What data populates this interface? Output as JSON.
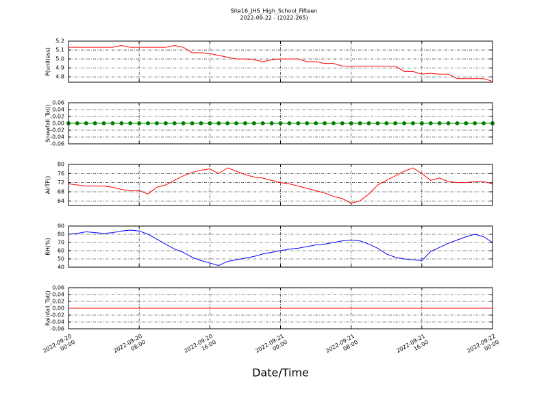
{
  "title": "Site16_JHS_High_School_Fifteen",
  "subtitle": "2022-09-22 - (2022-265)",
  "chart_data": [
    {
      "type": "line",
      "ylabel": "P(unitless)",
      "color": "#ff0000",
      "marker": false,
      "grid": true,
      "ylim": [
        4.74,
        5.2
      ],
      "yticks": [
        4.8,
        4.9,
        {
          "value": 5,
          "label": "5.0"
        },
        5.1,
        5.2
      ],
      "x": [
        "2022-09-20 00:00",
        "2022-09-20 01:00",
        "2022-09-20 02:00",
        "2022-09-20 03:00",
        "2022-09-20 04:00",
        "2022-09-20 05:00",
        "2022-09-20 06:00",
        "2022-09-20 07:00",
        "2022-09-20 08:00",
        "2022-09-20 09:00",
        "2022-09-20 10:00",
        "2022-09-20 11:00",
        "2022-09-20 12:00",
        "2022-09-20 13:00",
        "2022-09-20 14:00",
        "2022-09-20 15:00",
        "2022-09-20 16:00",
        "2022-09-20 17:00",
        "2022-09-20 18:00",
        "2022-09-20 19:00",
        "2022-09-20 20:00",
        "2022-09-20 21:00",
        "2022-09-20 22:00",
        "2022-09-20 23:00",
        "2022-09-21 00:00",
        "2022-09-21 01:00",
        "2022-09-21 02:00",
        "2022-09-21 03:00",
        "2022-09-21 04:00",
        "2022-09-21 05:00",
        "2022-09-21 06:00",
        "2022-09-21 07:00",
        "2022-09-21 08:00",
        "2022-09-21 09:00",
        "2022-09-21 10:00",
        "2022-09-21 11:00",
        "2022-09-21 12:00",
        "2022-09-21 13:00",
        "2022-09-21 14:00",
        "2022-09-21 15:00",
        "2022-09-21 16:00",
        "2022-09-21 17:00",
        "2022-09-21 18:00",
        "2022-09-21 19:00",
        "2022-09-21 20:00",
        "2022-09-21 21:00",
        "2022-09-21 22:00",
        "2022-09-21 23:00",
        "2022-09-22 00:00"
      ],
      "values": [
        5.13,
        5.13,
        5.13,
        5.13,
        5.13,
        5.13,
        5.15,
        5.13,
        5.13,
        5.13,
        5.13,
        5.13,
        5.15,
        5.13,
        5.07,
        5.07,
        5.06,
        5.04,
        5.02,
        5.0,
        5.0,
        4.99,
        4.97,
        4.99,
        5.0,
        5.0,
        5.0,
        4.97,
        4.97,
        4.95,
        4.95,
        4.92,
        4.92,
        4.92,
        4.92,
        4.92,
        4.92,
        4.92,
        4.86,
        4.86,
        4.83,
        4.84,
        4.83,
        4.83,
        4.78,
        4.78,
        4.78,
        4.78,
        4.75
      ]
    },
    {
      "type": "line",
      "ylabel": "Snowfall_Tot()",
      "color": "#008000",
      "marker": true,
      "grid": true,
      "ylim": [
        -0.06,
        0.06
      ],
      "yticks": [
        -0.06,
        -0.04,
        -0.02,
        {
          "value": 0,
          "label": "0.00"
        },
        0.02,
        0.04,
        0.06
      ],
      "x": [
        "2022-09-20 00:00",
        "2022-09-20 01:00",
        "2022-09-20 02:00",
        "2022-09-20 03:00",
        "2022-09-20 04:00",
        "2022-09-20 05:00",
        "2022-09-20 06:00",
        "2022-09-20 07:00",
        "2022-09-20 08:00",
        "2022-09-20 09:00",
        "2022-09-20 10:00",
        "2022-09-20 11:00",
        "2022-09-20 12:00",
        "2022-09-20 13:00",
        "2022-09-20 14:00",
        "2022-09-20 15:00",
        "2022-09-20 16:00",
        "2022-09-20 17:00",
        "2022-09-20 18:00",
        "2022-09-20 19:00",
        "2022-09-20 20:00",
        "2022-09-20 21:00",
        "2022-09-20 22:00",
        "2022-09-20 23:00",
        "2022-09-21 00:00",
        "2022-09-21 01:00",
        "2022-09-21 02:00",
        "2022-09-21 03:00",
        "2022-09-21 04:00",
        "2022-09-21 05:00",
        "2022-09-21 06:00",
        "2022-09-21 07:00",
        "2022-09-21 08:00",
        "2022-09-21 09:00",
        "2022-09-21 10:00",
        "2022-09-21 11:00",
        "2022-09-21 12:00",
        "2022-09-21 13:00",
        "2022-09-21 14:00",
        "2022-09-21 15:00",
        "2022-09-21 16:00",
        "2022-09-21 17:00",
        "2022-09-21 18:00",
        "2022-09-21 19:00",
        "2022-09-21 20:00",
        "2022-09-21 21:00",
        "2022-09-21 22:00",
        "2022-09-21 23:00",
        "2022-09-22 00:00"
      ],
      "values": [
        0,
        0,
        0,
        0,
        0,
        0,
        0,
        0,
        0,
        0,
        0,
        0,
        0,
        0,
        0,
        0,
        0,
        0,
        0,
        0,
        0,
        0,
        0,
        0,
        0,
        0,
        0,
        0,
        0,
        0,
        0,
        0,
        0,
        0,
        0,
        0,
        0,
        0,
        0,
        0,
        0,
        0,
        0,
        0,
        0,
        0,
        0,
        0,
        0
      ]
    },
    {
      "type": "line",
      "ylabel": "AirTF()",
      "color": "#ff0000",
      "marker": false,
      "grid": true,
      "ylim": [
        62,
        80
      ],
      "yticks": [
        64,
        68,
        72,
        76,
        80
      ],
      "x": [
        "2022-09-20 00:00",
        "2022-09-20 01:00",
        "2022-09-20 02:00",
        "2022-09-20 03:00",
        "2022-09-20 04:00",
        "2022-09-20 05:00",
        "2022-09-20 06:00",
        "2022-09-20 07:00",
        "2022-09-20 08:00",
        "2022-09-20 09:00",
        "2022-09-20 10:00",
        "2022-09-20 11:00",
        "2022-09-20 12:00",
        "2022-09-20 13:00",
        "2022-09-20 14:00",
        "2022-09-20 15:00",
        "2022-09-20 16:00",
        "2022-09-20 17:00",
        "2022-09-20 18:00",
        "2022-09-20 19:00",
        "2022-09-20 20:00",
        "2022-09-20 21:00",
        "2022-09-20 22:00",
        "2022-09-20 23:00",
        "2022-09-21 00:00",
        "2022-09-21 01:00",
        "2022-09-21 02:00",
        "2022-09-21 03:00",
        "2022-09-21 04:00",
        "2022-09-21 05:00",
        "2022-09-21 06:00",
        "2022-09-21 07:00",
        "2022-09-21 08:00",
        "2022-09-21 09:00",
        "2022-09-21 10:00",
        "2022-09-21 11:00",
        "2022-09-21 12:00",
        "2022-09-21 13:00",
        "2022-09-21 14:00",
        "2022-09-21 15:00",
        "2022-09-21 16:00",
        "2022-09-21 17:00",
        "2022-09-21 18:00",
        "2022-09-21 19:00",
        "2022-09-21 20:00",
        "2022-09-21 21:00",
        "2022-09-21 22:00",
        "2022-09-21 23:00",
        "2022-09-22 00:00"
      ],
      "values": [
        71.5,
        71,
        70.5,
        70.5,
        70.5,
        70,
        69,
        68.5,
        68.5,
        67,
        70,
        71,
        73,
        75,
        76.5,
        77.5,
        78,
        76,
        78.5,
        77,
        75.5,
        74.5,
        74,
        73,
        72,
        71.5,
        70.5,
        69.5,
        68.5,
        67.5,
        66,
        65,
        63,
        64,
        67,
        71,
        73,
        75,
        77,
        78.5,
        76,
        73,
        74,
        72.5,
        72,
        72,
        72.5,
        72.5,
        71.5
      ]
    },
    {
      "type": "line",
      "ylabel": "RH(%)",
      "color": "#0000ff",
      "marker": false,
      "grid": true,
      "ylim": [
        40,
        90
      ],
      "yticks": [
        40,
        50,
        60,
        70,
        80,
        90
      ],
      "x": [
        "2022-09-20 00:00",
        "2022-09-20 01:00",
        "2022-09-20 02:00",
        "2022-09-20 03:00",
        "2022-09-20 04:00",
        "2022-09-20 05:00",
        "2022-09-20 06:00",
        "2022-09-20 07:00",
        "2022-09-20 08:00",
        "2022-09-20 09:00",
        "2022-09-20 10:00",
        "2022-09-20 11:00",
        "2022-09-20 12:00",
        "2022-09-20 13:00",
        "2022-09-20 14:00",
        "2022-09-20 15:00",
        "2022-09-20 16:00",
        "2022-09-20 17:00",
        "2022-09-20 18:00",
        "2022-09-20 19:00",
        "2022-09-20 20:00",
        "2022-09-20 21:00",
        "2022-09-20 22:00",
        "2022-09-20 23:00",
        "2022-09-21 00:00",
        "2022-09-21 01:00",
        "2022-09-21 02:00",
        "2022-09-21 03:00",
        "2022-09-21 04:00",
        "2022-09-21 05:00",
        "2022-09-21 06:00",
        "2022-09-21 07:00",
        "2022-09-21 08:00",
        "2022-09-21 09:00",
        "2022-09-21 10:00",
        "2022-09-21 11:00",
        "2022-09-21 12:00",
        "2022-09-21 13:00",
        "2022-09-21 14:00",
        "2022-09-21 15:00",
        "2022-09-21 16:00",
        "2022-09-21 17:00",
        "2022-09-21 18:00",
        "2022-09-21 19:00",
        "2022-09-21 20:00",
        "2022-09-21 21:00",
        "2022-09-21 22:00",
        "2022-09-21 23:00",
        "2022-09-22 00:00"
      ],
      "values": [
        80,
        81,
        83,
        82,
        81,
        82,
        84,
        85,
        84,
        80,
        74,
        68,
        62,
        58,
        52,
        48,
        45,
        42,
        47,
        49,
        51,
        53,
        56,
        58,
        60,
        62,
        63,
        65,
        67,
        68,
        70,
        72,
        73,
        72,
        68,
        63,
        56,
        52,
        50,
        49,
        48,
        59,
        64,
        69,
        73,
        77,
        80,
        77,
        70
      ]
    },
    {
      "type": "line",
      "ylabel": "Rainfall_Tot()",
      "color": "#ff0000",
      "marker": false,
      "grid": true,
      "ylim": [
        -0.06,
        0.06
      ],
      "yticks": [
        -0.06,
        -0.04,
        -0.02,
        {
          "value": 0,
          "label": "0.00"
        },
        0.02,
        0.04,
        0.06
      ],
      "x": [
        "2022-09-20 00:00",
        "2022-09-20 01:00",
        "2022-09-20 02:00",
        "2022-09-20 03:00",
        "2022-09-20 04:00",
        "2022-09-20 05:00",
        "2022-09-20 06:00",
        "2022-09-20 07:00",
        "2022-09-20 08:00",
        "2022-09-20 09:00",
        "2022-09-20 10:00",
        "2022-09-20 11:00",
        "2022-09-20 12:00",
        "2022-09-20 13:00",
        "2022-09-20 14:00",
        "2022-09-20 15:00",
        "2022-09-20 16:00",
        "2022-09-20 17:00",
        "2022-09-20 18:00",
        "2022-09-20 19:00",
        "2022-09-20 20:00",
        "2022-09-20 21:00",
        "2022-09-20 22:00",
        "2022-09-20 23:00",
        "2022-09-21 00:00",
        "2022-09-21 01:00",
        "2022-09-21 02:00",
        "2022-09-21 03:00",
        "2022-09-21 04:00",
        "2022-09-21 05:00",
        "2022-09-21 06:00",
        "2022-09-21 07:00",
        "2022-09-21 08:00",
        "2022-09-21 09:00",
        "2022-09-21 10:00",
        "2022-09-21 11:00",
        "2022-09-21 12:00",
        "2022-09-21 13:00",
        "2022-09-21 14:00",
        "2022-09-21 15:00",
        "2022-09-21 16:00",
        "2022-09-21 17:00",
        "2022-09-21 18:00",
        "2022-09-21 19:00",
        "2022-09-21 20:00",
        "2022-09-21 21:00",
        "2022-09-21 22:00",
        "2022-09-21 23:00",
        "2022-09-22 00:00"
      ],
      "values": [
        0,
        0,
        0,
        0,
        0,
        0,
        0,
        0,
        0,
        0,
        0,
        0,
        0,
        0,
        0,
        0,
        0,
        0,
        0,
        0,
        0,
        0,
        0,
        0,
        0,
        0,
        0,
        0,
        0,
        0,
        0,
        0,
        0,
        0,
        0,
        0,
        0,
        0,
        0,
        0,
        0,
        0,
        0,
        0,
        0,
        0,
        0,
        0,
        0
      ],
      "xlabel": "Date/Time",
      "xlim": [
        "2022-09-20 00:00",
        "2022-09-22 00:00"
      ],
      "xticks": [
        {
          "value": "2022-09-20 00:00",
          "label": "2022-09-20\n00:00"
        },
        {
          "value": "2022-09-20 08:00",
          "label": "2022-09-20\n08:00"
        },
        {
          "value": "2022-09-20 16:00",
          "label": "2022-09-20\n16:00"
        },
        {
          "value": "2022-09-21 00:00",
          "label": "2022-09-21\n00:00"
        },
        {
          "value": "2022-09-21 08:00",
          "label": "2022-09-21\n08:00"
        },
        {
          "value": "2022-09-21 16:00",
          "label": "2022-09-21\n16:00"
        },
        {
          "value": "2022-09-22 00:00",
          "label": "2022-09-22\n00:00"
        }
      ]
    }
  ]
}
